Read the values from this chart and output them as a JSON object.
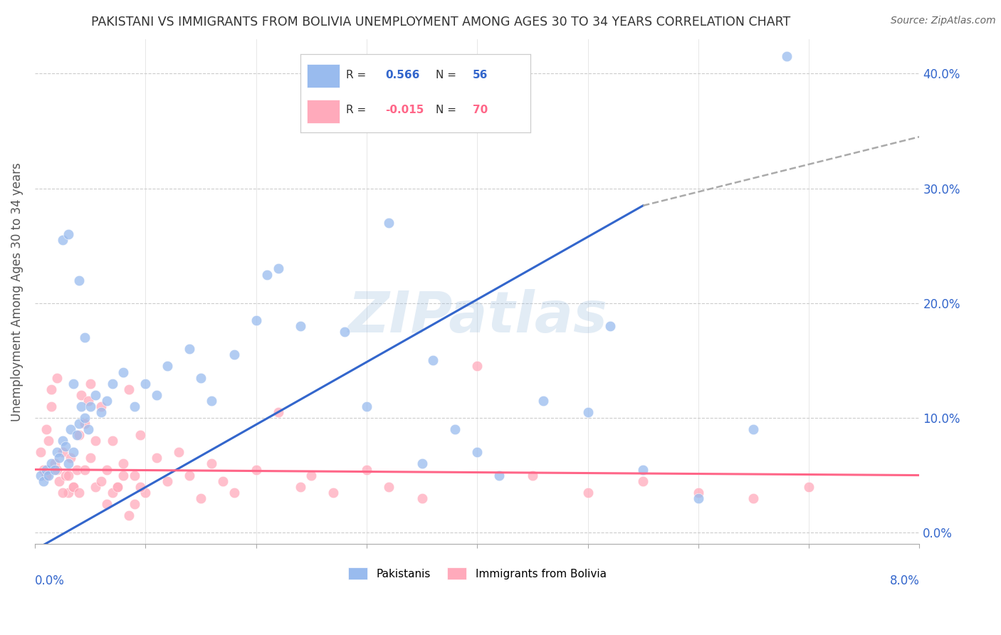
{
  "title": "PAKISTANI VS IMMIGRANTS FROM BOLIVIA UNEMPLOYMENT AMONG AGES 30 TO 34 YEARS CORRELATION CHART",
  "source": "Source: ZipAtlas.com",
  "ylabel": "Unemployment Among Ages 30 to 34 years",
  "xlim": [
    0.0,
    8.0
  ],
  "ylim": [
    -1.0,
    43.0
  ],
  "yticks": [
    0.0,
    10.0,
    20.0,
    30.0,
    40.0
  ],
  "pakistani_color": "#99BBEE",
  "bolivia_color": "#FFAABB",
  "pakistani_line_color": "#3366CC",
  "bolivia_line_color": "#FF6688",
  "pakistani_x": [
    0.05,
    0.08,
    0.1,
    0.12,
    0.15,
    0.18,
    0.2,
    0.22,
    0.25,
    0.28,
    0.3,
    0.32,
    0.35,
    0.38,
    0.4,
    0.42,
    0.45,
    0.48,
    0.5,
    0.55,
    0.6,
    0.65,
    0.7,
    0.8,
    0.9,
    1.0,
    1.1,
    1.2,
    1.4,
    1.5,
    1.6,
    1.8,
    2.0,
    2.1,
    2.2,
    2.4,
    2.8,
    3.0,
    3.2,
    3.5,
    3.6,
    3.8,
    4.0,
    4.2,
    4.6,
    5.0,
    5.2,
    5.5,
    6.0,
    6.5,
    6.8,
    0.25,
    0.3,
    0.35,
    0.4,
    0.45
  ],
  "pakistani_y": [
    5.0,
    4.5,
    5.5,
    5.0,
    6.0,
    5.5,
    7.0,
    6.5,
    8.0,
    7.5,
    6.0,
    9.0,
    7.0,
    8.5,
    9.5,
    11.0,
    10.0,
    9.0,
    11.0,
    12.0,
    10.5,
    11.5,
    13.0,
    14.0,
    11.0,
    13.0,
    12.0,
    14.5,
    16.0,
    13.5,
    11.5,
    15.5,
    18.5,
    22.5,
    23.0,
    18.0,
    17.5,
    11.0,
    27.0,
    6.0,
    15.0,
    9.0,
    7.0,
    5.0,
    11.5,
    10.5,
    18.0,
    5.5,
    3.0,
    9.0,
    41.5,
    25.5,
    26.0,
    13.0,
    22.0,
    17.0
  ],
  "bolivia_x": [
    0.05,
    0.08,
    0.1,
    0.12,
    0.15,
    0.18,
    0.2,
    0.22,
    0.25,
    0.28,
    0.3,
    0.32,
    0.35,
    0.38,
    0.4,
    0.42,
    0.45,
    0.48,
    0.5,
    0.55,
    0.6,
    0.65,
    0.7,
    0.75,
    0.8,
    0.85,
    0.9,
    0.95,
    1.0,
    1.1,
    1.2,
    1.3,
    1.4,
    1.5,
    1.6,
    1.7,
    1.8,
    2.0,
    2.2,
    2.4,
    2.5,
    2.7,
    3.0,
    3.2,
    3.5,
    4.0,
    4.5,
    5.0,
    5.5,
    6.0,
    6.5,
    7.0,
    0.1,
    0.15,
    0.2,
    0.25,
    0.3,
    0.35,
    0.4,
    0.45,
    0.5,
    0.55,
    0.6,
    0.65,
    0.7,
    0.75,
    0.8,
    0.85,
    0.9,
    0.95
  ],
  "bolivia_y": [
    7.0,
    5.5,
    9.0,
    8.0,
    11.0,
    6.0,
    5.5,
    4.5,
    7.0,
    5.0,
    3.5,
    6.5,
    4.0,
    5.5,
    8.5,
    12.0,
    9.5,
    11.5,
    13.0,
    8.0,
    11.0,
    5.5,
    8.0,
    4.0,
    6.0,
    12.5,
    5.0,
    8.5,
    3.5,
    6.5,
    4.5,
    7.0,
    5.0,
    3.0,
    6.0,
    4.5,
    3.5,
    5.5,
    10.5,
    4.0,
    5.0,
    3.5,
    5.5,
    4.0,
    3.0,
    14.5,
    5.0,
    3.5,
    4.5,
    3.5,
    3.0,
    4.0,
    5.0,
    12.5,
    13.5,
    3.5,
    5.0,
    4.0,
    3.5,
    5.5,
    6.5,
    4.0,
    4.5,
    2.5,
    3.5,
    4.0,
    5.0,
    1.5,
    2.5,
    4.0
  ],
  "pak_line_x": [
    0.0,
    5.5
  ],
  "pak_line_y": [
    -1.5,
    28.5
  ],
  "bol_line_x": [
    0.0,
    8.0
  ],
  "bol_line_y": [
    5.5,
    5.0
  ],
  "dash_line_x": [
    5.5,
    8.0
  ],
  "dash_line_y": [
    28.5,
    34.5
  ]
}
